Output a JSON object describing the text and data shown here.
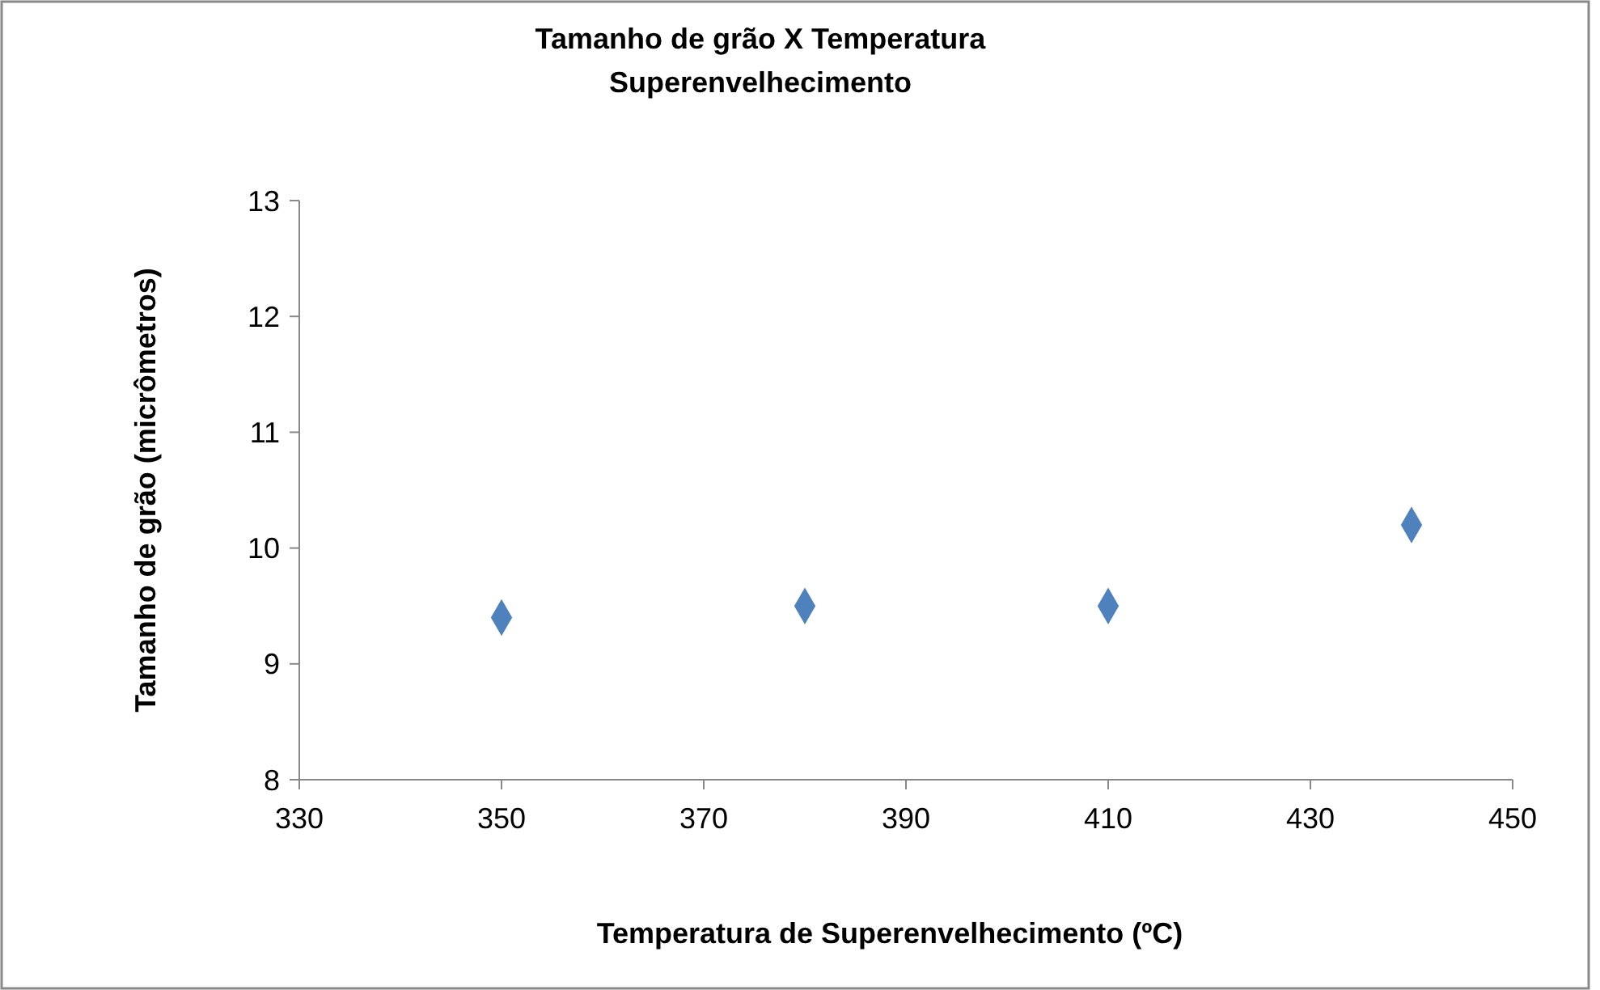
{
  "chart_data": {
    "type": "scatter",
    "title": "Tamanho de grão X Temperatura Superenvelhecimento",
    "xlabel": "Temperatura de Superenvelhecimento (ºC)",
    "ylabel": "Tamanho de grão (micrômetros)",
    "x": [
      350,
      380,
      410,
      440
    ],
    "series": [
      {
        "color": "#4f81bd",
        "values": [
          9.4,
          9.5,
          9.5,
          10.2
        ]
      }
    ],
    "xlim": [
      330,
      450
    ],
    "xticks": [
      330,
      350,
      370,
      390,
      410,
      430,
      450
    ],
    "ylim": [
      8,
      13
    ],
    "yticks": [
      8,
      9,
      10,
      11,
      12,
      13
    ],
    "marker": "diamond",
    "grid": false
  }
}
